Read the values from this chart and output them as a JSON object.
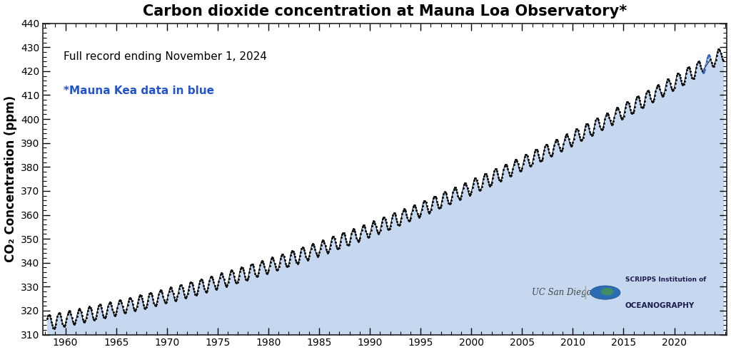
{
  "title": "Carbon dioxide concentration at Mauna Loa Observatory*",
  "subtitle": "Full record ending November 1, 2024",
  "note": "*Mauna Kea data in blue",
  "ylabel": "CO₂ Concentration (ppm)",
  "ylim": [
    310,
    440
  ],
  "xlim": [
    1957.8,
    2025.2
  ],
  "yticks": [
    310,
    320,
    330,
    340,
    350,
    360,
    370,
    380,
    390,
    400,
    410,
    420,
    430,
    440
  ],
  "xticks": [
    1960,
    1965,
    1970,
    1975,
    1980,
    1985,
    1990,
    1995,
    2000,
    2005,
    2010,
    2015,
    2020
  ],
  "fill_color": "#c5d8f0",
  "line_color": "#111111",
  "dot_color": "#111111",
  "bg_color": "#ffffff",
  "title_fontsize": 15,
  "label_fontsize": 12,
  "tick_fontsize": 10,
  "subtitle_fontsize": 11,
  "note_color": "#2255cc",
  "note_fontsize": 11,
  "mauna_kea_color": "#3366cc",
  "scripps_text_color": "#1a1a4a",
  "ucsd_text_color": "#444444"
}
